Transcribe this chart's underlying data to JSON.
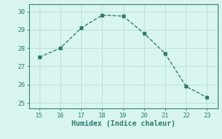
{
  "x": [
    15,
    16,
    17,
    18,
    19,
    20,
    21,
    22,
    23
  ],
  "y": [
    27.5,
    28.0,
    29.1,
    29.8,
    29.75,
    28.8,
    27.7,
    25.9,
    25.3
  ],
  "xlabel": "Humidex (Indice chaleur)",
  "xlim": [
    14.5,
    23.5
  ],
  "ylim": [
    24.7,
    30.4
  ],
  "yticks": [
    25,
    26,
    27,
    28,
    29,
    30
  ],
  "xticks": [
    15,
    16,
    17,
    18,
    19,
    20,
    21,
    22,
    23
  ],
  "line_color": "#2e7b6e",
  "bg_color": "#d8f5ef",
  "grid_color": "#b8ddd6",
  "tick_color": "#2e7b6e",
  "label_color": "#2e7b6e",
  "marker": "s",
  "marker_size": 2.5,
  "line_width": 1.0,
  "xlabel_fontsize": 7.5,
  "tick_fontsize": 6.5
}
